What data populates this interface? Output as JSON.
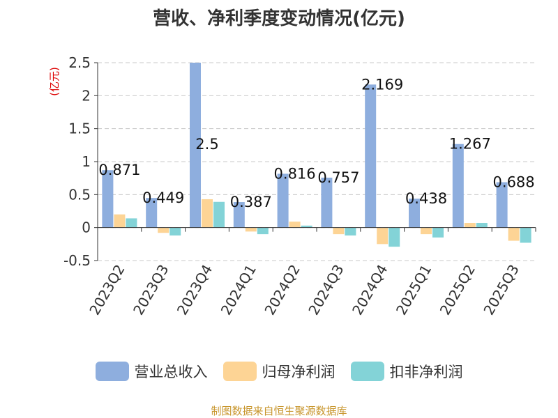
{
  "title": "营收、净利季度变动情况(亿元)",
  "source": "制图数据来自恒生聚源数据库",
  "chart_data": {
    "type": "bar",
    "ylabel": "(亿元)",
    "ylim": [
      -0.5,
      2.5
    ],
    "yticks": [
      "2.5",
      "2",
      "1.5",
      "1",
      "0.5",
      "0",
      "-0.5"
    ],
    "grid": true,
    "legend_position": "bottom",
    "categories": [
      "2023Q2",
      "2023Q3",
      "2023Q4",
      "2024Q1",
      "2024Q2",
      "2024Q3",
      "2024Q4",
      "2025Q1",
      "2025Q2",
      "2025Q3"
    ],
    "series": [
      {
        "name": "营业总收入",
        "color": "#8eaede",
        "values": [
          0.871,
          0.449,
          2.5,
          0.387,
          0.816,
          0.757,
          2.169,
          0.438,
          1.267,
          0.688
        ],
        "labels": [
          "0.871",
          "0.449",
          "2.5",
          "0.387",
          "0.816",
          "0.757",
          "2.169",
          "0.438",
          "1.267",
          "0.688"
        ]
      },
      {
        "name": "归母净利润",
        "color": "#fdd495",
        "values": [
          0.2,
          -0.08,
          0.43,
          -0.06,
          0.09,
          -0.1,
          -0.25,
          -0.1,
          0.07,
          -0.2
        ]
      },
      {
        "name": "扣非净利润",
        "color": "#83d3d7",
        "values": [
          0.14,
          -0.12,
          0.39,
          -0.1,
          0.03,
          -0.12,
          -0.29,
          -0.15,
          0.07,
          -0.23
        ]
      }
    ]
  }
}
